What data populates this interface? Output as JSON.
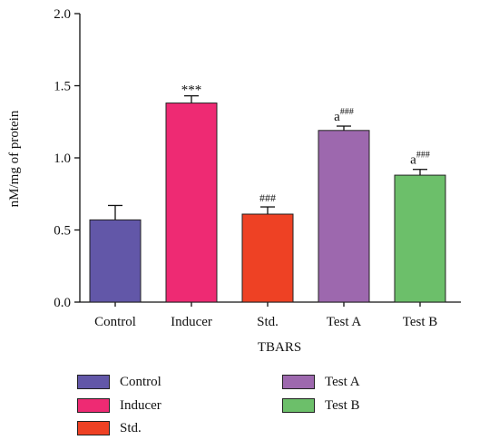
{
  "chart_data": {
    "type": "bar",
    "categories": [
      "Control",
      "Inducer",
      "Std.",
      "Test A",
      "Test B"
    ],
    "values": [
      0.57,
      1.38,
      0.61,
      1.19,
      0.88
    ],
    "errors": [
      0.1,
      0.05,
      0.05,
      0.03,
      0.04
    ],
    "annotations": [
      "",
      "***",
      "###",
      "a###",
      "a###"
    ],
    "colors": [
      "#6257a8",
      "#ee2a73",
      "#ee4124",
      "#9d68ae",
      "#6cbf6a"
    ],
    "title": "",
    "xlabel": "TBARS",
    "ylabel": "nM/mg of protein",
    "ylim": [
      0,
      2.0
    ],
    "yticks": [
      0.0,
      0.5,
      1.0,
      1.5,
      2.0
    ],
    "ytick_labels": [
      "0.0",
      "0.5",
      "1.0",
      "1.5",
      "2.0"
    ],
    "grid": false,
    "legend": [
      "Control",
      "Inducer",
      "Std.",
      "Test A",
      "Test B"
    ],
    "legend_position": "bottom"
  }
}
